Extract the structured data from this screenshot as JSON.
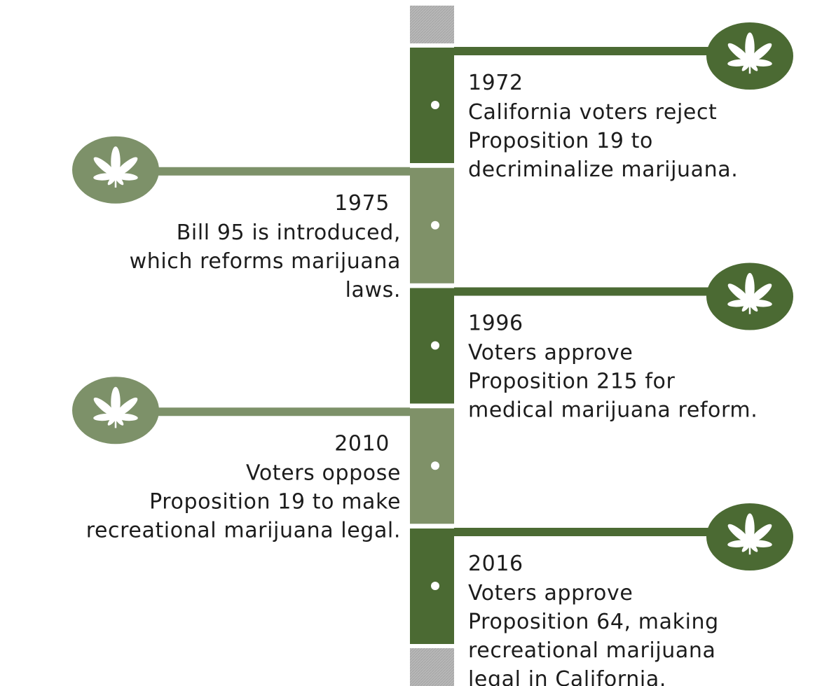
{
  "events": [
    {
      "year": "1972",
      "lines": [
        "California voters reject",
        "Proposition 19 to",
        "decriminalize marijuana."
      ]
    },
    {
      "year": "1975",
      "lines": [
        "Bill 95 is introduced,",
        "which reforms marijuana",
        "laws."
      ]
    },
    {
      "year": "1996",
      "lines": [
        "Voters approve",
        "Proposition 215 for",
        "medical marijuana reform."
      ]
    },
    {
      "year": "2010",
      "lines": [
        "Voters oppose",
        "Proposition 19 to make",
        "recreational marijuana legal."
      ]
    },
    {
      "year": "2016",
      "lines": [
        "Voters approve",
        "Proposition 64, making",
        "recreational marijuana",
        "legal in California."
      ]
    }
  ]
}
